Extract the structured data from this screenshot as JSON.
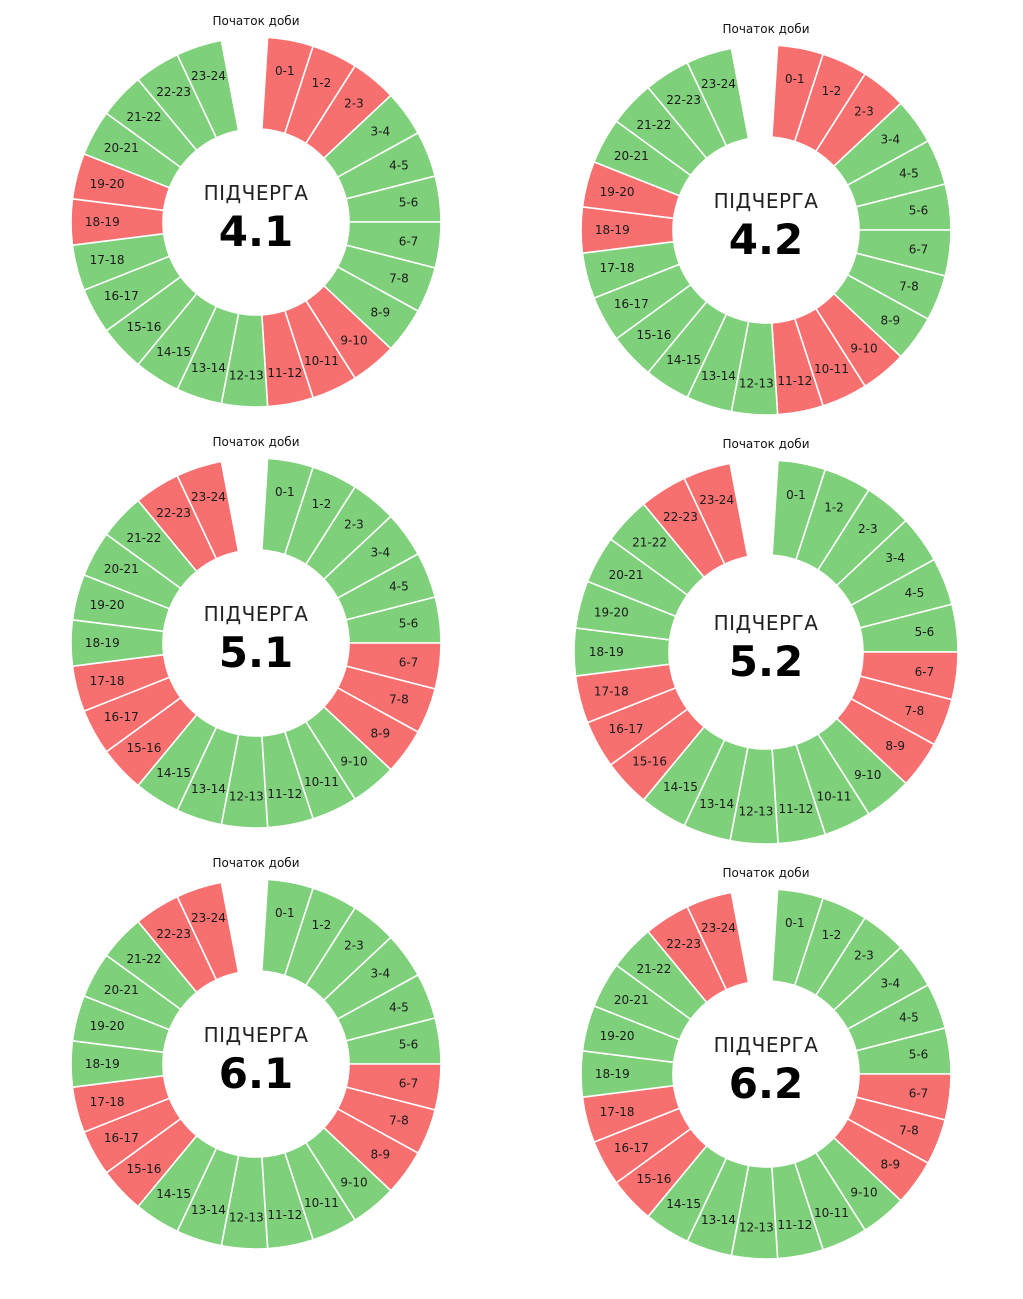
{
  "colors": {
    "on": "#7ED07A",
    "off": "#F76F6F",
    "gap": "#ffffff"
  },
  "legend_hint": "Початок доби",
  "hour_labels": [
    "0-1",
    "1-2",
    "2-3",
    "3-4",
    "4-5",
    "5-6",
    "6-7",
    "7-8",
    "8-9",
    "9-10",
    "10-11",
    "11-12",
    "12-13",
    "13-14",
    "14-15",
    "15-16",
    "16-17",
    "17-18",
    "18-19",
    "19-20",
    "20-21",
    "21-22",
    "22-23",
    "23-24"
  ],
  "chart_data": [
    {
      "type": "pie",
      "title": "ПІДЧЕРГА",
      "number": "4.1",
      "values": [
        1,
        1,
        1,
        1,
        1,
        1,
        1,
        1,
        1,
        1,
        1,
        1,
        1,
        1,
        1,
        1,
        1,
        1,
        1,
        1,
        1,
        1,
        1,
        1
      ],
      "status": [
        "off",
        "off",
        "off",
        "on",
        "on",
        "on",
        "on",
        "on",
        "on",
        "off",
        "off",
        "off",
        "on",
        "on",
        "on",
        "on",
        "on",
        "on",
        "off",
        "off",
        "on",
        "on",
        "on",
        "on"
      ]
    },
    {
      "type": "pie",
      "title": "ПІДЧЕРГА",
      "number": "4.2",
      "values": [
        1,
        1,
        1,
        1,
        1,
        1,
        1,
        1,
        1,
        1,
        1,
        1,
        1,
        1,
        1,
        1,
        1,
        1,
        1,
        1,
        1,
        1,
        1,
        1
      ],
      "status": [
        "off",
        "off",
        "off",
        "on",
        "on",
        "on",
        "on",
        "on",
        "on",
        "off",
        "off",
        "off",
        "on",
        "on",
        "on",
        "on",
        "on",
        "on",
        "off",
        "off",
        "on",
        "on",
        "on",
        "on"
      ]
    },
    {
      "type": "pie",
      "title": "ПІДЧЕРГА",
      "number": "5.1",
      "values": [
        1,
        1,
        1,
        1,
        1,
        1,
        1,
        1,
        1,
        1,
        1,
        1,
        1,
        1,
        1,
        1,
        1,
        1,
        1,
        1,
        1,
        1,
        1,
        1
      ],
      "status": [
        "on",
        "on",
        "on",
        "on",
        "on",
        "on",
        "off",
        "off",
        "off",
        "on",
        "on",
        "on",
        "on",
        "on",
        "on",
        "off",
        "off",
        "off",
        "on",
        "on",
        "on",
        "on",
        "off",
        "off"
      ]
    },
    {
      "type": "pie",
      "title": "ПІДЧЕРГА",
      "number": "5.2",
      "values": [
        1,
        1,
        1,
        1,
        1,
        1,
        1,
        1,
        1,
        1,
        1,
        1,
        1,
        1,
        1,
        1,
        1,
        1,
        1,
        1,
        1,
        1,
        1,
        1
      ],
      "status": [
        "on",
        "on",
        "on",
        "on",
        "on",
        "on",
        "off",
        "off",
        "off",
        "on",
        "on",
        "on",
        "on",
        "on",
        "on",
        "off",
        "off",
        "off",
        "on",
        "on",
        "on",
        "on",
        "off",
        "off"
      ]
    },
    {
      "type": "pie",
      "title": "ПІДЧЕРГА",
      "number": "6.1",
      "values": [
        1,
        1,
        1,
        1,
        1,
        1,
        1,
        1,
        1,
        1,
        1,
        1,
        1,
        1,
        1,
        1,
        1,
        1,
        1,
        1,
        1,
        1,
        1,
        1
      ],
      "status": [
        "on",
        "on",
        "on",
        "on",
        "on",
        "on",
        "off",
        "off",
        "off",
        "on",
        "on",
        "on",
        "on",
        "on",
        "on",
        "off",
        "off",
        "off",
        "on",
        "on",
        "on",
        "on",
        "off",
        "off"
      ]
    },
    {
      "type": "pie",
      "title": "ПІДЧЕРГА",
      "number": "6.2",
      "values": [
        1,
        1,
        1,
        1,
        1,
        1,
        1,
        1,
        1,
        1,
        1,
        1,
        1,
        1,
        1,
        1,
        1,
        1,
        1,
        1,
        1,
        1,
        1,
        1
      ],
      "status": [
        "on",
        "on",
        "on",
        "on",
        "on",
        "on",
        "off",
        "off",
        "off",
        "on",
        "on",
        "on",
        "on",
        "on",
        "on",
        "off",
        "off",
        "off",
        "on",
        "on",
        "on",
        "on",
        "off",
        "off"
      ]
    }
  ]
}
